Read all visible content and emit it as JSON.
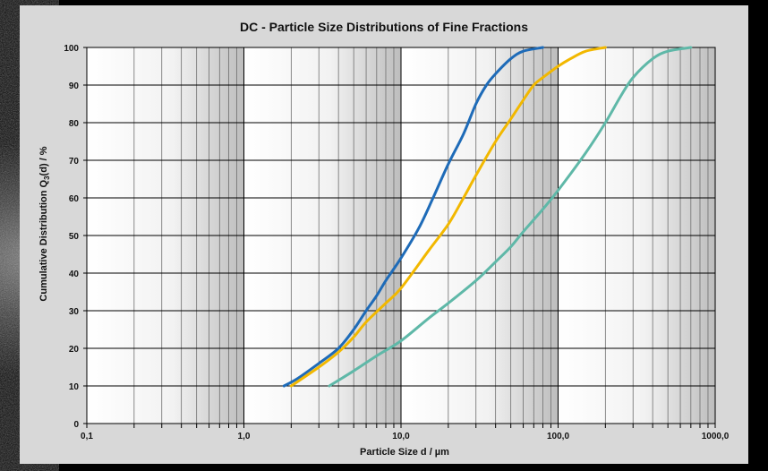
{
  "chart_data": {
    "type": "line",
    "title": "DC - Particle Size Distributions of Fine Fractions",
    "xlabel": "Particle Size d / µm",
    "ylabel": "Cumulative Distribution Q",
    "ylabel_subscript": "3",
    "ylabel_suffix": "(d) / %",
    "x_scale": "log",
    "xlim": [
      0.1,
      1000
    ],
    "ylim": [
      0,
      100
    ],
    "x_tick_labels": [
      {
        "value": 0.1,
        "label": "0,1"
      },
      {
        "value": 1,
        "label": "1,0"
      },
      {
        "value": 10,
        "label": "10,0"
      },
      {
        "value": 100,
        "label": "100,0"
      },
      {
        "value": 1000,
        "label": "1000,0"
      }
    ],
    "y_ticks": [
      0,
      10,
      20,
      30,
      40,
      50,
      60,
      70,
      80,
      90,
      100
    ],
    "grid": true,
    "legend": "none",
    "series": [
      {
        "color": "#1e6bb8",
        "points": [
          [
            1.8,
            10
          ],
          [
            2.2,
            12
          ],
          [
            3,
            16
          ],
          [
            4,
            20
          ],
          [
            5,
            25
          ],
          [
            6,
            30
          ],
          [
            7,
            34
          ],
          [
            8,
            38
          ],
          [
            10,
            44
          ],
          [
            13,
            52
          ],
          [
            16,
            60
          ],
          [
            20,
            69
          ],
          [
            25,
            77
          ],
          [
            30,
            85
          ],
          [
            35,
            90
          ],
          [
            40,
            93
          ],
          [
            50,
            97
          ],
          [
            60,
            99
          ],
          [
            80,
            100
          ]
        ]
      },
      {
        "color": "#f2b800",
        "points": [
          [
            2,
            10
          ],
          [
            3,
            15
          ],
          [
            4,
            19
          ],
          [
            5,
            23
          ],
          [
            6,
            27
          ],
          [
            8,
            32
          ],
          [
            10,
            36
          ],
          [
            15,
            46
          ],
          [
            20,
            53
          ],
          [
            25,
            60
          ],
          [
            30,
            66
          ],
          [
            40,
            75
          ],
          [
            50,
            81
          ],
          [
            60,
            86
          ],
          [
            70,
            90
          ],
          [
            80,
            92
          ],
          [
            100,
            95
          ],
          [
            120,
            97
          ],
          [
            150,
            99
          ],
          [
            200,
            100
          ]
        ]
      },
      {
        "color": "#5fb8a8",
        "points": [
          [
            3.5,
            10
          ],
          [
            5,
            14
          ],
          [
            7,
            18
          ],
          [
            10,
            22
          ],
          [
            15,
            28
          ],
          [
            20,
            32
          ],
          [
            30,
            38
          ],
          [
            40,
            43
          ],
          [
            50,
            47
          ],
          [
            60,
            51
          ],
          [
            80,
            57
          ],
          [
            100,
            62
          ],
          [
            150,
            72
          ],
          [
            200,
            80
          ],
          [
            250,
            87
          ],
          [
            300,
            92
          ],
          [
            400,
            97
          ],
          [
            500,
            99
          ],
          [
            700,
            100
          ]
        ]
      }
    ]
  }
}
